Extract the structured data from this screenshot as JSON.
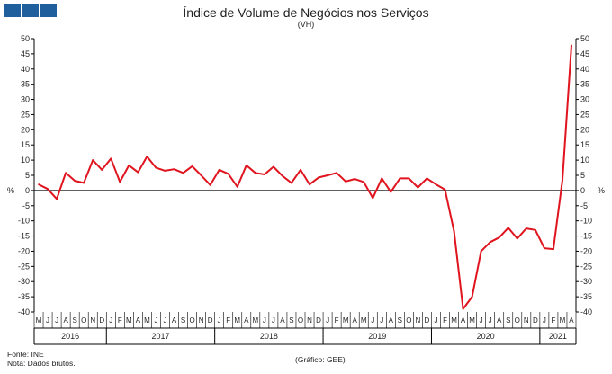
{
  "chart_data": {
    "type": "line",
    "title": "Índice de Volume de Negócios nos Serviços",
    "subtitle": "(VH)",
    "ylabel_left": "%",
    "ylabel_right": "%",
    "ylim": [
      -40,
      50
    ],
    "yticks": [
      50,
      45,
      40,
      35,
      30,
      25,
      20,
      15,
      10,
      5,
      0,
      -5,
      -10,
      -15,
      -20,
      -25,
      -30,
      -35,
      -40
    ],
    "grid": false,
    "line_color": "#e0141e",
    "months": [
      "M",
      "J",
      "J",
      "A",
      "S",
      "O",
      "N",
      "D",
      "J",
      "F",
      "M",
      "A",
      "M",
      "J",
      "J",
      "A",
      "S",
      "O",
      "N",
      "D",
      "J",
      "F",
      "M",
      "A",
      "M",
      "J",
      "J",
      "A",
      "S",
      "O",
      "N",
      "D",
      "J",
      "F",
      "M",
      "A",
      "M",
      "J",
      "J",
      "A",
      "S",
      "O",
      "N",
      "D",
      "J",
      "F",
      "M",
      "A",
      "M",
      "J",
      "J",
      "A",
      "S",
      "O",
      "N",
      "D",
      "J",
      "F",
      "M",
      "A"
    ],
    "years": [
      {
        "label": "2016",
        "start": 0,
        "count": 8
      },
      {
        "label": "2017",
        "start": 8,
        "count": 12
      },
      {
        "label": "2018",
        "start": 20,
        "count": 12
      },
      {
        "label": "2019",
        "start": 32,
        "count": 12
      },
      {
        "label": "2020",
        "start": 44,
        "count": 12
      },
      {
        "label": "2021",
        "start": 56,
        "count": 4
      }
    ],
    "series": [
      {
        "values": [
          2.0,
          0.5,
          -2.8,
          5.8,
          3.2,
          2.5,
          10.0,
          6.8,
          10.5,
          2.8,
          8.3,
          6.0,
          11.2,
          7.5,
          6.5,
          7.0,
          5.8,
          8.0,
          5.0,
          1.8,
          6.8,
          5.5,
          1.2,
          8.3,
          5.8,
          5.3,
          7.8,
          4.8,
          2.5,
          6.8,
          2.0,
          4.3,
          5.0,
          5.8,
          3.0,
          3.8,
          2.8,
          -2.5,
          4.0,
          -0.5,
          4.0,
          4.0,
          1.0,
          4.0,
          2.0,
          0.3,
          -13.5,
          -39.0,
          -35.0,
          -20.0,
          -17.0,
          -15.5,
          -12.3,
          -15.8,
          -12.5,
          -13.0,
          -19.0,
          -19.3,
          3.5,
          47.8
        ]
      }
    ]
  },
  "footer": {
    "source": "Fonte: INE",
    "note": "Nota: Dados brutos.",
    "credit": "(Gráfico: GEE)"
  }
}
